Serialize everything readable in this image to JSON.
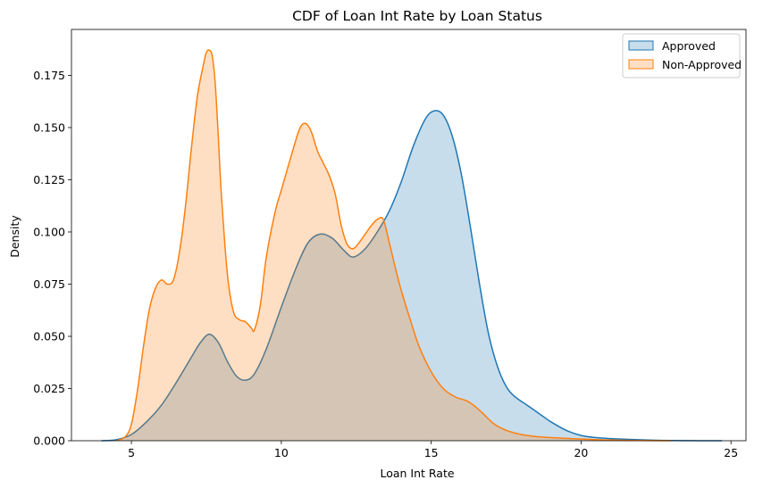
{
  "chart_data": {
    "type": "area",
    "title": "CDF of Loan Int Rate by Loan Status",
    "xlabel": "Loan Int Rate",
    "ylabel": "Density",
    "xlim": [
      3,
      25.5
    ],
    "ylim": [
      0,
      0.197
    ],
    "xticks": [
      5,
      10,
      15,
      20,
      25
    ],
    "yticks": [
      0.0,
      0.025,
      0.05,
      0.075,
      0.1,
      0.125,
      0.15,
      0.175
    ],
    "ytick_labels": [
      "0.000",
      "0.025",
      "0.050",
      "0.075",
      "0.100",
      "0.125",
      "0.150",
      "0.175"
    ],
    "grid": false,
    "legend_position": "top-right",
    "series": [
      {
        "name": "Approved",
        "line_color": "#1f77b4",
        "fill_color": "#1f77b4",
        "fill_opacity": 0.25,
        "x": [
          4.0,
          4.5,
          5.0,
          5.5,
          6.0,
          6.5,
          7.0,
          7.3,
          7.6,
          7.9,
          8.2,
          8.5,
          8.8,
          9.1,
          9.5,
          10.0,
          10.5,
          10.9,
          11.3,
          11.7,
          12.1,
          12.4,
          12.8,
          13.2,
          13.6,
          14.0,
          14.4,
          14.8,
          15.1,
          15.4,
          15.7,
          16.0,
          16.3,
          16.6,
          16.9,
          17.2,
          17.5,
          17.8,
          18.2,
          18.6,
          19.0,
          19.5,
          20.0,
          20.5,
          21.0,
          21.5,
          22.0,
          22.5,
          23.0,
          24.0,
          24.7
        ],
        "y": [
          0.0,
          0.0005,
          0.003,
          0.009,
          0.017,
          0.028,
          0.04,
          0.047,
          0.051,
          0.047,
          0.038,
          0.031,
          0.029,
          0.032,
          0.044,
          0.064,
          0.083,
          0.095,
          0.099,
          0.097,
          0.091,
          0.088,
          0.092,
          0.1,
          0.11,
          0.124,
          0.141,
          0.154,
          0.158,
          0.156,
          0.146,
          0.128,
          0.103,
          0.076,
          0.052,
          0.036,
          0.026,
          0.021,
          0.017,
          0.013,
          0.009,
          0.005,
          0.0025,
          0.0015,
          0.001,
          0.0007,
          0.0004,
          0.0002,
          0.0001,
          0.0,
          0.0
        ]
      },
      {
        "name": "Non-Approved",
        "line_color": "#ff7f0e",
        "fill_color": "#ff7f0e",
        "fill_opacity": 0.25,
        "x": [
          4.5,
          4.8,
          5.0,
          5.2,
          5.4,
          5.6,
          5.8,
          6.0,
          6.2,
          6.4,
          6.6,
          6.8,
          7.0,
          7.2,
          7.4,
          7.5,
          7.6,
          7.7,
          7.8,
          7.9,
          8.0,
          8.2,
          8.4,
          8.6,
          8.8,
          9.0,
          9.1,
          9.3,
          9.5,
          9.8,
          10.0,
          10.3,
          10.6,
          10.8,
          11.0,
          11.2,
          11.4,
          11.6,
          11.8,
          12.0,
          12.2,
          12.4,
          12.6,
          12.8,
          13.0,
          13.2,
          13.4,
          13.6,
          13.8,
          14.0,
          14.3,
          14.6,
          15.0,
          15.4,
          15.8,
          16.2,
          16.5,
          16.8,
          17.1,
          17.5,
          18.0,
          18.5,
          19.0,
          20.0,
          21.0,
          22.0,
          23.0
        ],
        "y": [
          0.0,
          0.002,
          0.008,
          0.024,
          0.045,
          0.063,
          0.073,
          0.077,
          0.075,
          0.077,
          0.09,
          0.112,
          0.14,
          0.165,
          0.18,
          0.186,
          0.187,
          0.184,
          0.17,
          0.145,
          0.118,
          0.08,
          0.062,
          0.058,
          0.057,
          0.054,
          0.053,
          0.065,
          0.088,
          0.11,
          0.12,
          0.135,
          0.149,
          0.152,
          0.148,
          0.139,
          0.133,
          0.127,
          0.118,
          0.103,
          0.094,
          0.092,
          0.095,
          0.099,
          0.103,
          0.106,
          0.106,
          0.095,
          0.083,
          0.072,
          0.058,
          0.045,
          0.033,
          0.025,
          0.021,
          0.019,
          0.016,
          0.012,
          0.008,
          0.005,
          0.003,
          0.002,
          0.0015,
          0.0008,
          0.0003,
          0.0001,
          0.0
        ]
      }
    ]
  }
}
